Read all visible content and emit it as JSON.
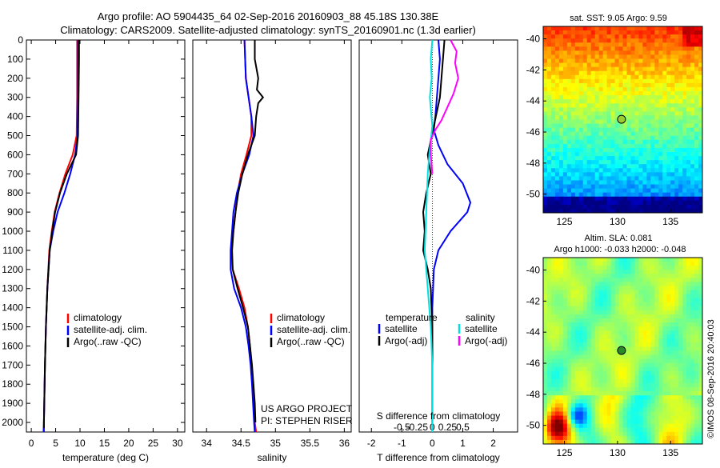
{
  "header": {
    "line1": "Argo profile: AO 5904435_64 02-Sep-2016 20160903_88 45.18S 130.38E",
    "line2": "Climatology: CARS2009. Satellite-adjusted climatology: synTS_20160901.nc (1.3d earlier)"
  },
  "credit": {
    "project": "US ARGO PROJECT",
    "pi": "PI: STEPHEN RISER"
  },
  "watermark": "©IMOS 08-Sep-2016 20:40:03",
  "colors": {
    "climatology": "#ff0000",
    "satellite": "#0000ff",
    "argo": "#000000",
    "salinity_satellite": "#00e0e0",
    "salinity_argo": "#ff00ff"
  },
  "chart_data": [
    {
      "type": "line",
      "id": "temperature",
      "xlabel": "temperature (deg C)",
      "ylim": [
        2050,
        0
      ],
      "yticks": [
        0,
        100,
        200,
        300,
        400,
        500,
        600,
        700,
        800,
        900,
        1000,
        1100,
        1200,
        1300,
        1400,
        1500,
        1600,
        1700,
        1800,
        1900,
        2000
      ],
      "xlim": [
        -1,
        31.5
      ],
      "xticks": [
        0,
        5,
        10,
        15,
        20,
        25,
        30
      ],
      "legend": [
        "climatology",
        "satellite-adj. clim.",
        "Argo(..raw -QC)"
      ],
      "series": [
        {
          "name": "climatology",
          "color": "#ff0000",
          "points": [
            [
              9.4,
              0
            ],
            [
              9.4,
              100
            ],
            [
              9.4,
              300
            ],
            [
              9.3,
              500
            ],
            [
              8.5,
              600
            ],
            [
              7.0,
              700
            ],
            [
              5.8,
              800
            ],
            [
              4.8,
              900
            ],
            [
              4.2,
              1000
            ],
            [
              3.7,
              1100
            ],
            [
              3.3,
              1300
            ],
            [
              3.0,
              1500
            ],
            [
              2.8,
              1700
            ],
            [
              2.6,
              2000
            ],
            [
              2.5,
              2050
            ]
          ]
        },
        {
          "name": "satellite-adj. clim.",
          "color": "#0000ff",
          "points": [
            [
              9.6,
              0
            ],
            [
              9.6,
              100
            ],
            [
              9.6,
              300
            ],
            [
              9.5,
              500
            ],
            [
              9.0,
              600
            ],
            [
              8.0,
              700
            ],
            [
              6.8,
              800
            ],
            [
              5.4,
              900
            ],
            [
              4.5,
              1000
            ],
            [
              3.8,
              1100
            ],
            [
              3.3,
              1300
            ],
            [
              3.0,
              1500
            ],
            [
              2.8,
              1700
            ],
            [
              2.6,
              2000
            ],
            [
              2.6,
              2050
            ]
          ]
        },
        {
          "name": "Argo(..raw -QC)",
          "color": "#000000",
          "points": [
            [
              9.8,
              0
            ],
            [
              9.8,
              100
            ],
            [
              9.7,
              300
            ],
            [
              9.6,
              500
            ],
            [
              9.2,
              600
            ],
            [
              7.3,
              700
            ],
            [
              5.9,
              800
            ],
            [
              4.9,
              900
            ],
            [
              4.3,
              1000
            ],
            [
              3.8,
              1100
            ],
            [
              3.3,
              1300
            ],
            [
              3.0,
              1500
            ],
            [
              2.8,
              1700
            ],
            [
              2.6,
              2000
            ],
            [
              2.6,
              2030
            ]
          ]
        }
      ]
    },
    {
      "type": "line",
      "id": "salinity",
      "xlabel": "salinity",
      "ylim": [
        2050,
        0
      ],
      "xlim": [
        33.8,
        36.1
      ],
      "xticks": [
        34,
        34.5,
        35,
        35.5,
        36
      ],
      "legend": [
        "climatology",
        "satellite-adj. clim.",
        "Argo(..raw -QC)"
      ],
      "series": [
        {
          "name": "climatology",
          "color": "#ff0000",
          "points": [
            [
              34.55,
              0
            ],
            [
              34.57,
              200
            ],
            [
              34.65,
              400
            ],
            [
              34.65,
              500
            ],
            [
              34.58,
              600
            ],
            [
              34.5,
              700
            ],
            [
              34.45,
              800
            ],
            [
              34.42,
              900
            ],
            [
              34.39,
              1000
            ],
            [
              34.36,
              1100
            ],
            [
              34.38,
              1200
            ],
            [
              34.47,
              1300
            ],
            [
              34.55,
              1400
            ],
            [
              34.6,
              1500
            ],
            [
              34.63,
              1600
            ],
            [
              34.65,
              1700
            ],
            [
              34.67,
              1800
            ],
            [
              34.7,
              2000
            ],
            [
              34.72,
              2050
            ]
          ]
        },
        {
          "name": "satellite-adj. clim.",
          "color": "#0000ff",
          "points": [
            [
              34.55,
              0
            ],
            [
              34.57,
              200
            ],
            [
              34.65,
              400
            ],
            [
              34.68,
              500
            ],
            [
              34.62,
              600
            ],
            [
              34.52,
              700
            ],
            [
              34.44,
              800
            ],
            [
              34.39,
              900
            ],
            [
              34.37,
              1000
            ],
            [
              34.35,
              1100
            ],
            [
              34.35,
              1200
            ],
            [
              34.4,
              1300
            ],
            [
              34.5,
              1400
            ],
            [
              34.57,
              1500
            ],
            [
              34.61,
              1600
            ],
            [
              34.64,
              1700
            ],
            [
              34.66,
              1800
            ],
            [
              34.69,
              2000
            ],
            [
              34.7,
              2050
            ]
          ]
        },
        {
          "name": "Argo(..raw -QC)",
          "color": "#000000",
          "points": [
            [
              34.7,
              0
            ],
            [
              34.7,
              100
            ],
            [
              34.75,
              200
            ],
            [
              34.73,
              260
            ],
            [
              34.82,
              300
            ],
            [
              34.75,
              330
            ],
            [
              34.72,
              400
            ],
            [
              34.7,
              500
            ],
            [
              34.6,
              600
            ],
            [
              34.52,
              700
            ],
            [
              34.46,
              800
            ],
            [
              34.42,
              900
            ],
            [
              34.39,
              1000
            ],
            [
              34.37,
              1100
            ],
            [
              34.38,
              1200
            ],
            [
              34.45,
              1300
            ],
            [
              34.53,
              1400
            ],
            [
              34.6,
              1500
            ],
            [
              34.63,
              1600
            ],
            [
              34.66,
              1700
            ],
            [
              34.68,
              1800
            ],
            [
              34.7,
              1900
            ],
            [
              34.71,
              2000
            ]
          ]
        }
      ]
    },
    {
      "type": "line",
      "id": "difference",
      "xlabel": "T difference from climatology",
      "xlabel2": "S difference from climatology",
      "ylim": [
        2050,
        0
      ],
      "xlim": [
        -2.4,
        2.8
      ],
      "xticks": [
        -2,
        -1,
        0,
        1,
        2
      ],
      "xticks2": [
        -0.5,
        -0.25,
        0,
        0.25,
        0.5
      ],
      "legend_temperature_title": "temperature",
      "legend_salinity_title": "salinity",
      "legend": [
        "satellite",
        "Argo(-adj)",
        "satellite",
        "Argo(-adj)"
      ],
      "series": [
        {
          "name": "T satellite",
          "color": "#0000ff",
          "points": [
            [
              0.2,
              0
            ],
            [
              0.25,
              100
            ],
            [
              0.2,
              200
            ],
            [
              0.15,
              300
            ],
            [
              0.1,
              400
            ],
            [
              0.05,
              470
            ],
            [
              0.2,
              550
            ],
            [
              0.5,
              650
            ],
            [
              1.0,
              750
            ],
            [
              1.25,
              850
            ],
            [
              1.15,
              900
            ],
            [
              0.6,
              1000
            ],
            [
              0.2,
              1100
            ],
            [
              0.05,
              1200
            ],
            [
              0.0,
              1400
            ],
            [
              0,
              2050
            ]
          ]
        },
        {
          "name": "T Argo(-adj)",
          "color": "#000000",
          "points": [
            [
              0.4,
              0
            ],
            [
              0.35,
              100
            ],
            [
              0.3,
              200
            ],
            [
              0.25,
              300
            ],
            [
              0.05,
              450
            ],
            [
              -0.15,
              600
            ],
            [
              -0.05,
              700
            ],
            [
              -0.2,
              800
            ],
            [
              -0.3,
              900
            ],
            [
              -0.25,
              1000
            ],
            [
              -0.3,
              1100
            ],
            [
              -0.15,
              1200
            ],
            [
              -0.05,
              1300
            ],
            [
              0.0,
              1500
            ],
            [
              0.0,
              2000
            ]
          ]
        },
        {
          "name": "S satellite",
          "color": "#00e0e0",
          "points": [
            [
              0.0,
              0
            ],
            [
              -0.05,
              100
            ],
            [
              -0.02,
              200
            ],
            [
              -0.08,
              300
            ],
            [
              0.0,
              450
            ],
            [
              -0.1,
              600
            ],
            [
              -0.15,
              700
            ],
            [
              -0.2,
              900
            ],
            [
              -0.25,
              1100
            ],
            [
              -0.15,
              1300
            ],
            [
              -0.05,
              1500
            ],
            [
              0.0,
              1700
            ],
            [
              0.0,
              2050
            ]
          ]
        },
        {
          "name": "S Argo(-adj)",
          "color": "#ff00ff",
          "points": [
            [
              0.6,
              0
            ],
            [
              0.8,
              60
            ],
            [
              0.75,
              120
            ],
            [
              0.85,
              200
            ],
            [
              0.7,
              280
            ],
            [
              0.5,
              350
            ],
            [
              0.3,
              420
            ],
            [
              0.1,
              470
            ],
            [
              -0.05,
              520
            ],
            [
              -0.05,
              600
            ],
            [
              0.0,
              700
            ]
          ]
        }
      ]
    },
    {
      "type": "heatmap",
      "id": "sst",
      "title": "sat. SST: 9.05 Argo: 9.59",
      "xticks": [
        125,
        130,
        135
      ],
      "yticks": [
        -40,
        -42,
        -44,
        -46,
        -48,
        -50
      ],
      "xlim": [
        123,
        138
      ],
      "ylim": [
        -51.2,
        -39.2
      ],
      "marker": [
        130.38,
        -45.18
      ]
    },
    {
      "type": "heatmap",
      "id": "sla",
      "title": "Altim. SLA: 0.081",
      "subtitle": "Argo h1000: -0.033 h2000: -0.048",
      "xticks": [
        125,
        130,
        135
      ],
      "yticks": [
        -40,
        -42,
        -44,
        -46,
        -48,
        -50
      ],
      "xlim": [
        123,
        138
      ],
      "ylim": [
        -51.2,
        -39.2
      ],
      "marker": [
        130.38,
        -45.18
      ]
    }
  ]
}
